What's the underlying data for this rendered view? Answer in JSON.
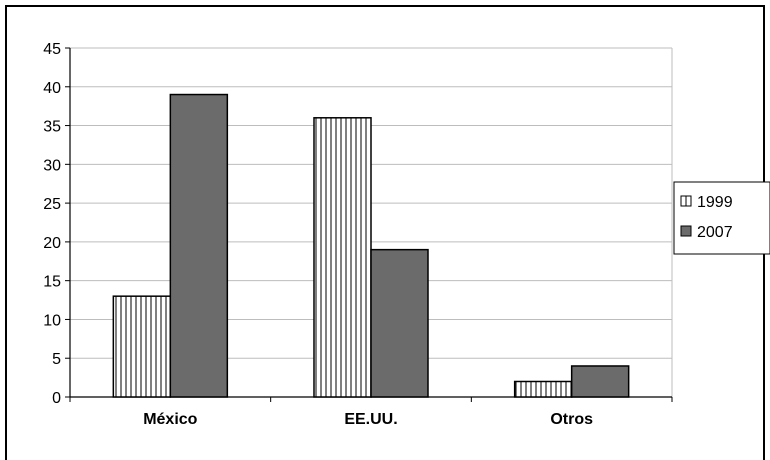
{
  "chart_data": {
    "type": "bar",
    "categories": [
      "México",
      "EE.UU.",
      "Otros"
    ],
    "series": [
      {
        "name": "1999",
        "values": [
          13,
          36,
          2
        ],
        "pattern": "vertical-stripes",
        "color": "#ffffff"
      },
      {
        "name": "2007",
        "values": [
          39,
          19,
          4
        ],
        "color": "#6b6b6b"
      }
    ],
    "ylim": [
      0,
      45
    ],
    "yticks": [
      0,
      5,
      10,
      15,
      20,
      25,
      30,
      35,
      40,
      45
    ],
    "grid": true,
    "legend_position": "right",
    "colors": {
      "stripe": "#000000",
      "bar_dark": "#6b6b6b",
      "grid": "#bdbdbd"
    }
  }
}
